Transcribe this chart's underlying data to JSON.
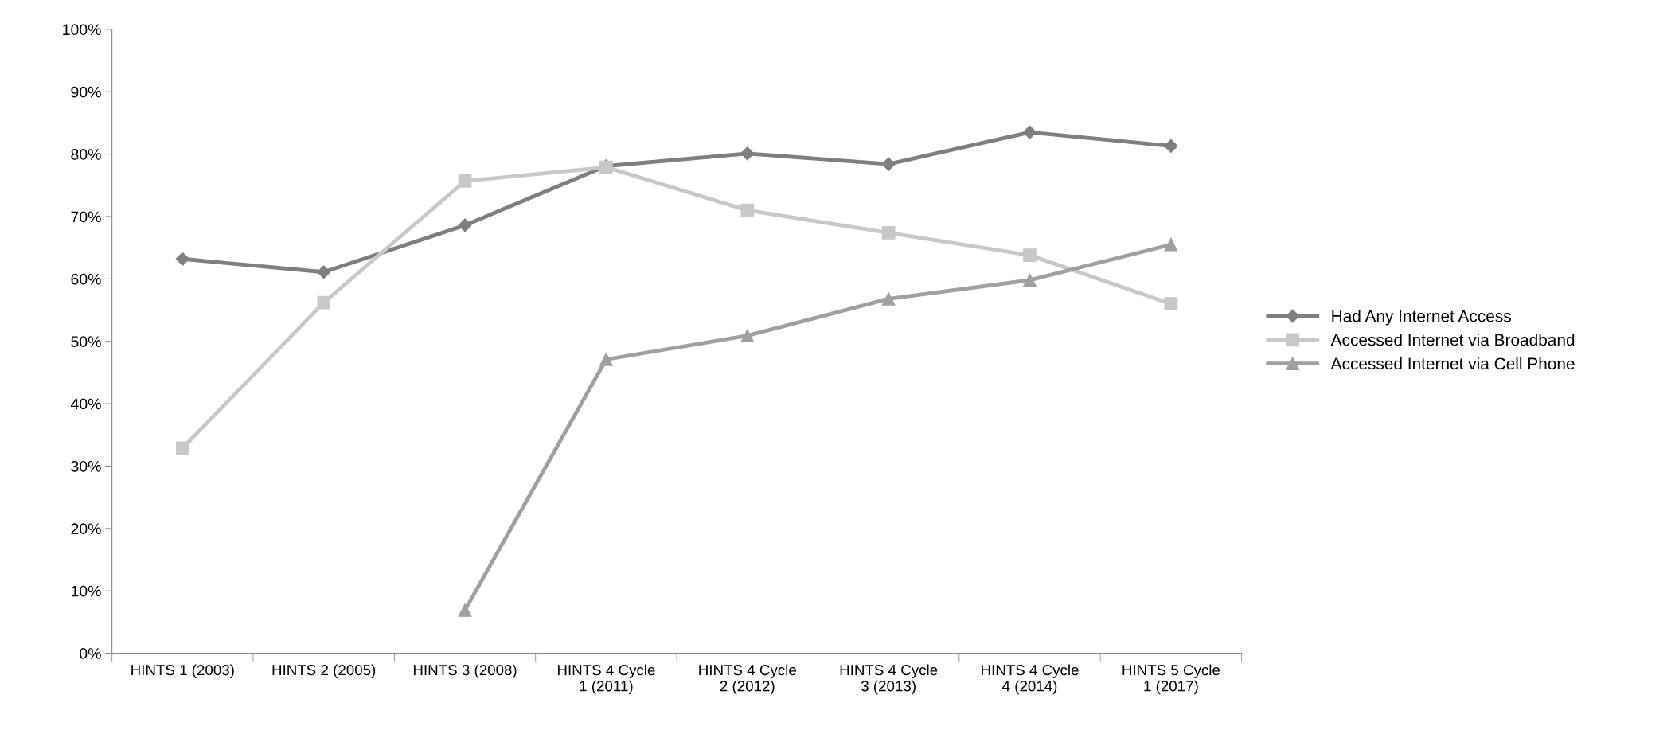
{
  "chart_data": {
    "type": "line",
    "categories": [
      "HINTS 1 (2003)",
      "HINTS 2 (2005)",
      "HINTS 3 (2008)",
      "HINTS 4 Cycle\n1 (2011)",
      "HINTS 4 Cycle\n2 (2012)",
      "HINTS 4 Cycle\n3 (2013)",
      "HINTS 4 Cycle\n4 (2014)",
      "HINTS 5 Cycle\n1 (2017)"
    ],
    "series": [
      {
        "name": "Had Any Internet Access",
        "color": "#7f7f7f",
        "marker": "diamond",
        "values": [
          63.2,
          61.1,
          68.6,
          78.1,
          80.1,
          78.4,
          83.5,
          81.3
        ]
      },
      {
        "name": "Accessed Internet via Broadband",
        "color": "#c8c8c8",
        "marker": "square",
        "values": [
          32.9,
          56.2,
          75.7,
          77.9,
          71.0,
          67.4,
          63.8,
          56.0
        ]
      },
      {
        "name": "Accessed Internet via Cell Phone",
        "color": "#a0a0a0",
        "marker": "triangle",
        "values": [
          null,
          null,
          6.9,
          47.1,
          50.9,
          56.8,
          59.8,
          65.5
        ]
      }
    ],
    "ylim": [
      0,
      100
    ],
    "yticks": [
      {
        "value": 0,
        "label": "0%"
      },
      {
        "value": 10,
        "label": "10%"
      },
      {
        "value": 20,
        "label": "20%"
      },
      {
        "value": 30,
        "label": "30%"
      },
      {
        "value": 40,
        "label": "40%"
      },
      {
        "value": 50,
        "label": "50%"
      },
      {
        "value": 60,
        "label": "60%"
      },
      {
        "value": 70,
        "label": "70%"
      },
      {
        "value": 80,
        "label": "80%"
      },
      {
        "value": 90,
        "label": "90%"
      },
      {
        "value": 100,
        "label": "100%"
      }
    ],
    "grid": false,
    "legend": "right",
    "line_style": "solid"
  }
}
